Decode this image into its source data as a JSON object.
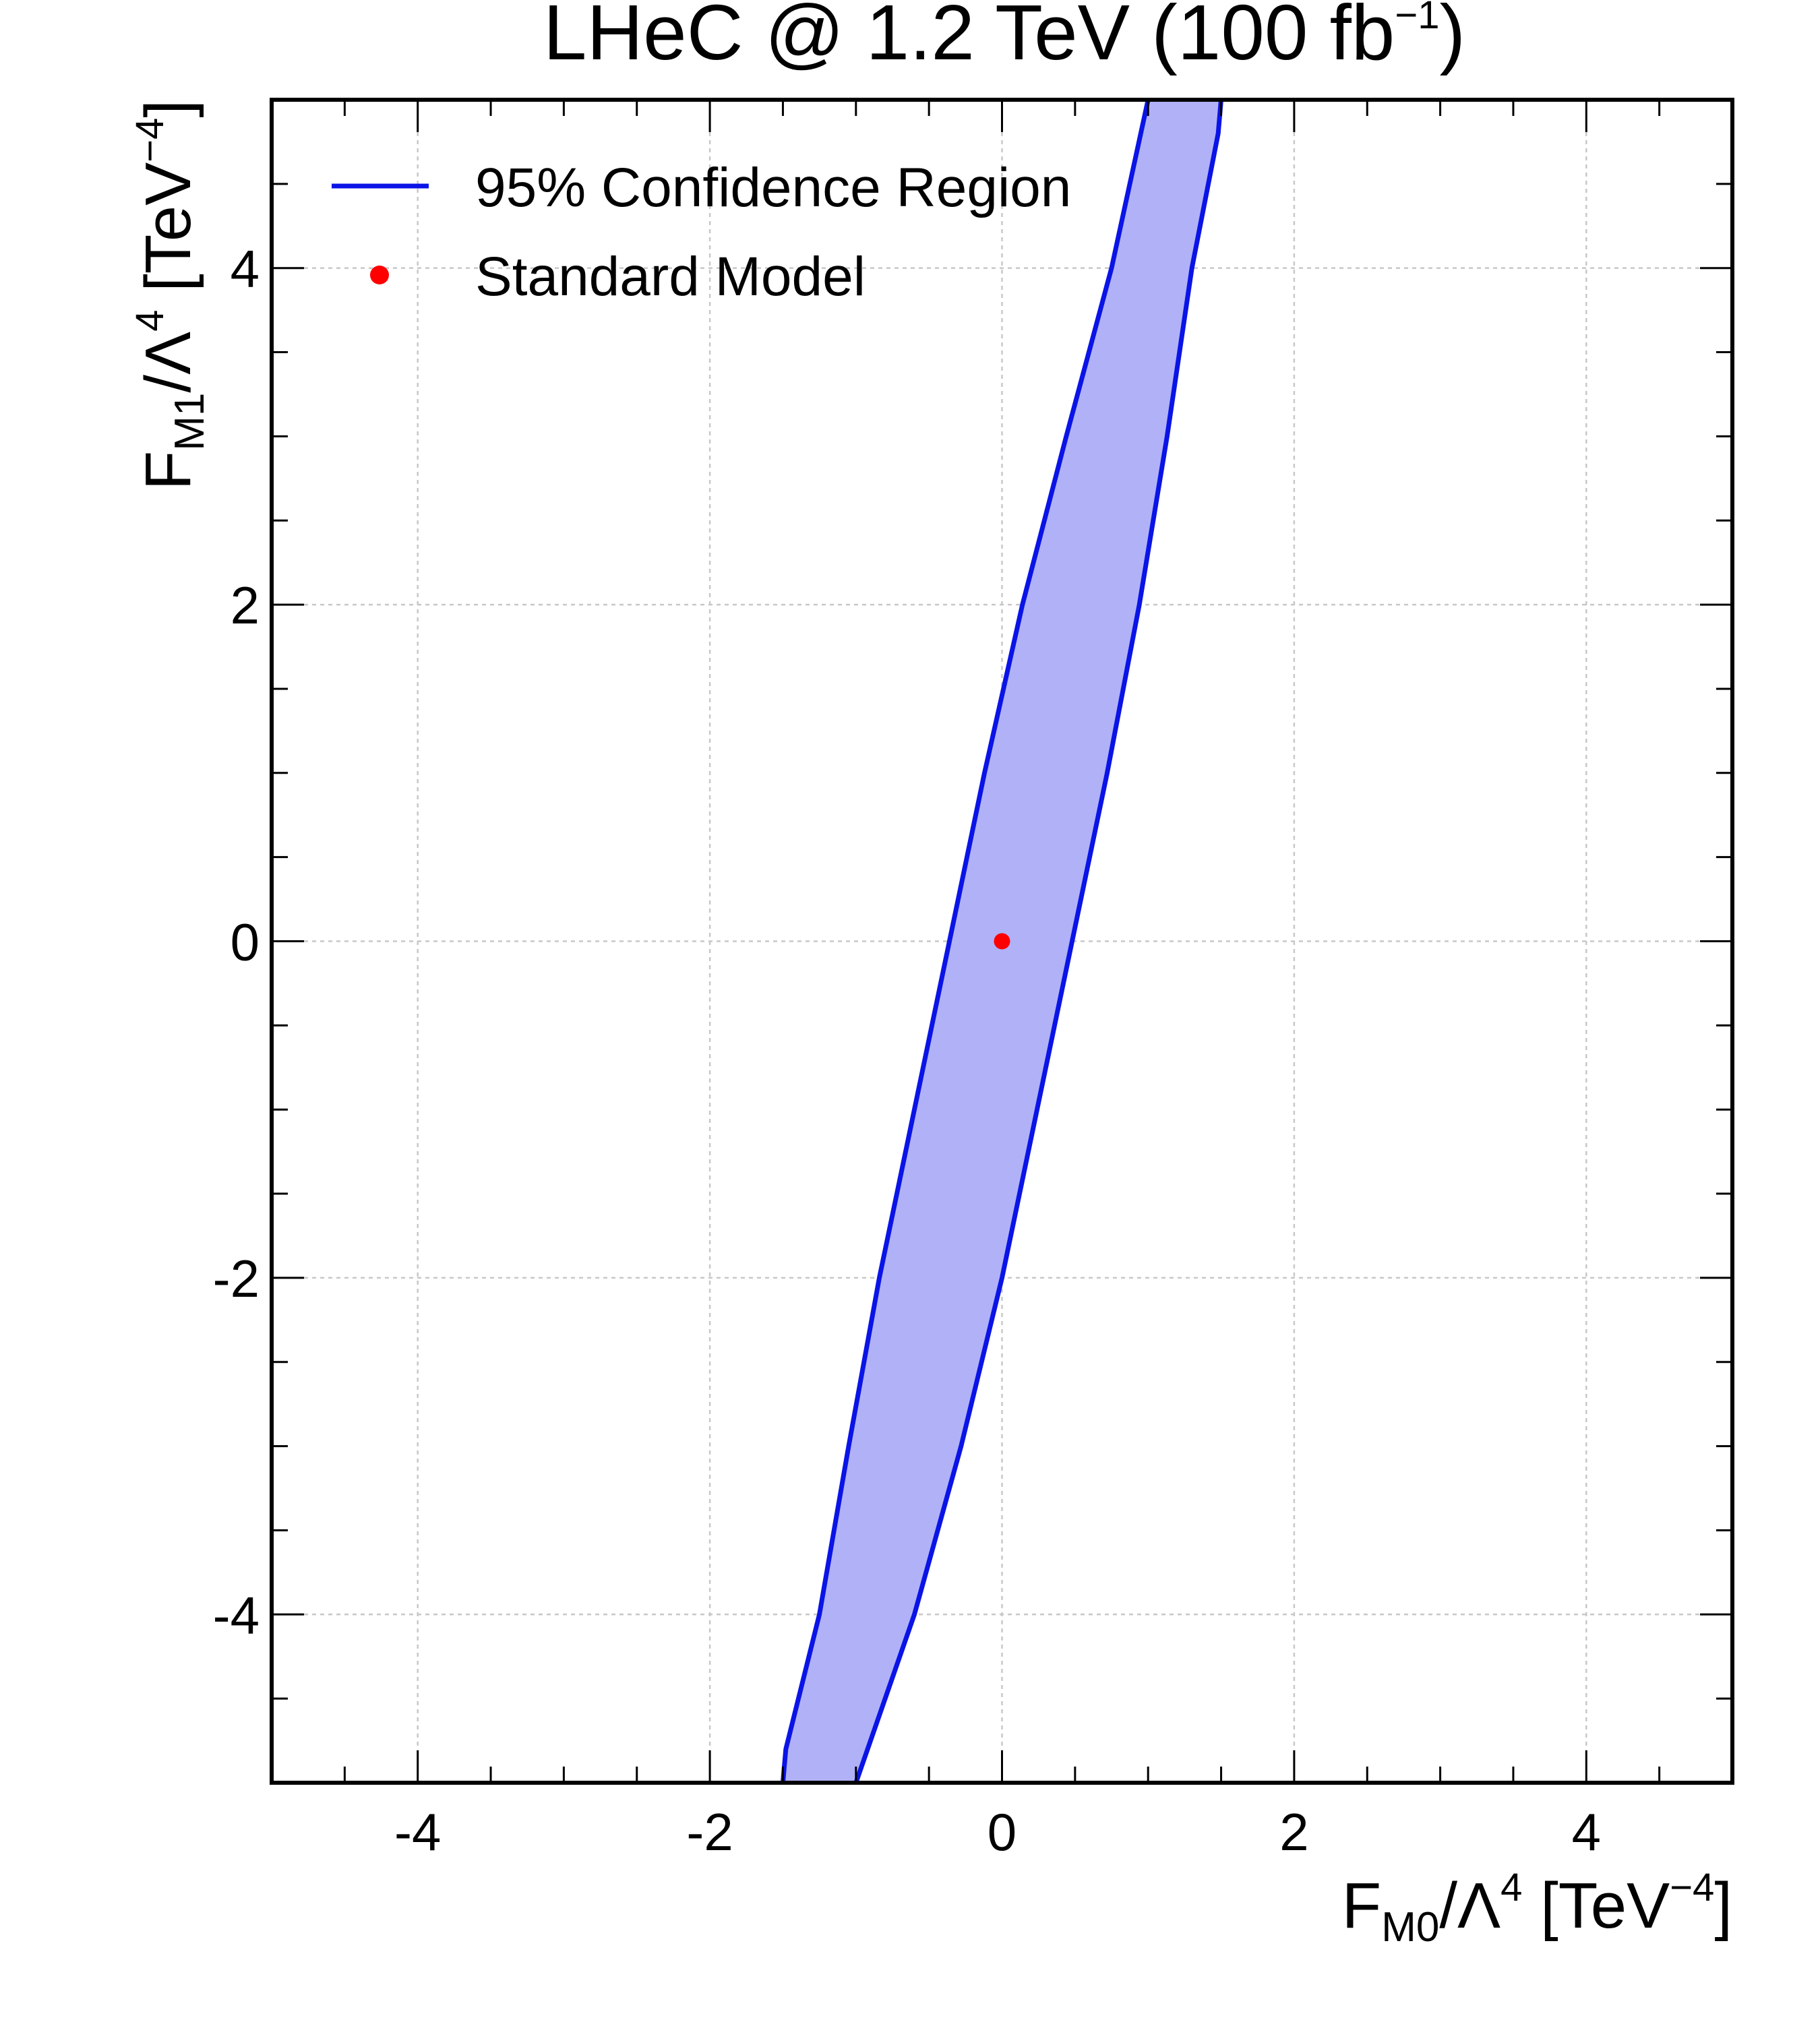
{
  "chart_data": {
    "type": "scatter",
    "title": {
      "main": "LHeC @ 1.2 TeV (100 fb",
      "sup": "−1",
      "end": ")"
    },
    "xlabel": {
      "a": "F",
      "sub": "M0",
      "b": "/Λ",
      "sup1": "4",
      "c": " [TeV",
      "sup2": "−4",
      "d": "]"
    },
    "ylabel": {
      "a": "F",
      "sub": "M1",
      "b": "/Λ",
      "sup1": "4",
      "c": " [TeV",
      "sup2": "−4",
      "d": "]"
    },
    "xlim": [
      -5,
      5
    ],
    "ylim": [
      -5,
      5
    ],
    "xticks": [
      -4,
      -2,
      0,
      2,
      4
    ],
    "yticks": [
      -4,
      -2,
      0,
      2,
      4
    ],
    "xtick_labels": [
      "-4",
      "-2",
      "0",
      "2",
      "4"
    ],
    "ytick_labels": [
      "-4",
      "-2",
      "0",
      "2",
      "4"
    ],
    "grid": true,
    "legend_position": "top-left",
    "series": [
      {
        "name": "95% Confidence Region",
        "kind": "ellipse-contour",
        "line_color": "#0a14e6",
        "fill_color": "#b1b1f7",
        "outline": [
          [
            1.0,
            5.0
          ],
          [
            0.75,
            4.0
          ],
          [
            0.44,
            3.0
          ],
          [
            0.14,
            2.0
          ],
          [
            -0.12,
            1.0
          ],
          [
            -0.36,
            0.0
          ],
          [
            -0.6,
            -1.0
          ],
          [
            -0.84,
            -2.0
          ],
          [
            -1.05,
            -3.0
          ],
          [
            -1.25,
            -4.0
          ],
          [
            -1.48,
            -4.8
          ],
          [
            -1.5,
            -5.0
          ],
          [
            -1.0,
            -5.0
          ],
          [
            -0.6,
            -4.0
          ],
          [
            -0.28,
            -3.0
          ],
          [
            0.0,
            -2.0
          ],
          [
            0.24,
            -1.0
          ],
          [
            0.48,
            0.0
          ],
          [
            0.72,
            1.0
          ],
          [
            0.94,
            2.0
          ],
          [
            1.13,
            3.0
          ],
          [
            1.3,
            4.0
          ],
          [
            1.48,
            4.8
          ],
          [
            1.5,
            5.0
          ]
        ]
      },
      {
        "name": "Standard Model",
        "kind": "point",
        "color": "#ff0000",
        "x": [
          0
        ],
        "y": [
          0
        ]
      }
    ]
  }
}
